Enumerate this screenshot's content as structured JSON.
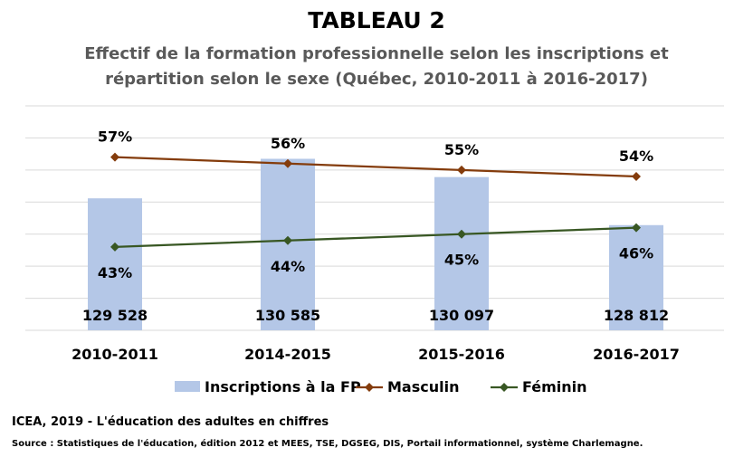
{
  "title": "TABLEAU 2",
  "subtitle": "Effectif de la formation professionnelle selon les inscriptions et répartition selon le sexe (Québec, 2010-2011 à 2016-2017)",
  "credit": "ICEA, 2019 - L'éducation des adultes en chiffres",
  "source": "Source : Statistiques de l'éducation, édition 2012 et MEES, TSE, DGSEG, DIS, Portail informationnel,  système Charlemagne.",
  "colors": {
    "bars": "#b4c7e7",
    "masculin": "#843c0c",
    "feminin": "#385723",
    "grid": "#d9d9d9",
    "text": "#000000"
  },
  "chart_data": {
    "type": "bar+line",
    "categories": [
      "2010-2011",
      "2014-2015",
      "2015-2016",
      "2016-2017"
    ],
    "bar_axis": {
      "ylim": [
        126000,
        132000
      ]
    },
    "line_axis": {
      "ylim": [
        0.3,
        0.65
      ]
    },
    "grid": true,
    "legend_position": "bottom",
    "series": [
      {
        "name": "Inscriptions à la FP",
        "kind": "bar",
        "values": [
          129528,
          130585,
          130097,
          128812
        ],
        "labels": [
          "129 528",
          "130 585",
          "130 097",
          "128 812"
        ]
      },
      {
        "name": "Masculin",
        "kind": "line",
        "marker": "diamond",
        "values": [
          0.57,
          0.56,
          0.55,
          0.54
        ],
        "labels": [
          "57%",
          "56%",
          "55%",
          "54%"
        ]
      },
      {
        "name": "Féminin",
        "kind": "line",
        "marker": "diamond",
        "values": [
          0.43,
          0.44,
          0.45,
          0.46
        ],
        "labels": [
          "43%",
          "44%",
          "45%",
          "46%"
        ]
      }
    ]
  }
}
